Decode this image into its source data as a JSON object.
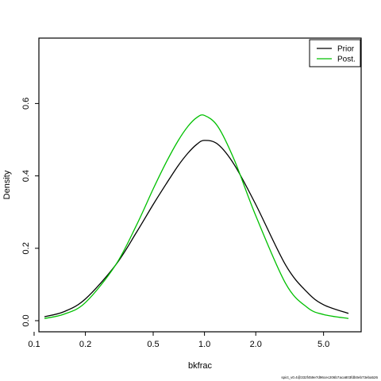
{
  "chart_data": {
    "type": "line",
    "xlabel": "bkfrac",
    "ylabel": "Density",
    "x_scale": "log",
    "xlim": [
      0.115,
      7.0
    ],
    "ylim": [
      0.0,
      0.75
    ],
    "x_ticks": [
      0.1,
      0.2,
      0.5,
      1.0,
      2.0,
      5.0
    ],
    "x_tick_labels": [
      "0.1",
      "0.2",
      "0.5",
      "1.0",
      "2.0",
      "5.0"
    ],
    "y_ticks": [
      0.0,
      0.2,
      0.4,
      0.6
    ],
    "y_tick_labels": [
      "0.0",
      "0.2",
      "0.4",
      "0.6"
    ],
    "grid": false,
    "legend_position": "top-right",
    "series": [
      {
        "name": "Prior",
        "color": "#000000",
        "x": [
          0.115,
          0.15,
          0.2,
          0.3,
          0.4,
          0.5,
          0.6,
          0.7,
          0.8,
          0.9,
          1.0,
          1.2,
          1.5,
          2.0,
          3.0,
          4.0,
          5.0,
          7.0
        ],
        "values": [
          0.011,
          0.025,
          0.06,
          0.153,
          0.245,
          0.321,
          0.38,
          0.428,
          0.463,
          0.487,
          0.498,
          0.487,
          0.43,
          0.321,
          0.153,
          0.079,
          0.044,
          0.02
        ]
      },
      {
        "name": "Post.",
        "color": "#00c000",
        "x": [
          0.115,
          0.15,
          0.2,
          0.3,
          0.4,
          0.5,
          0.6,
          0.7,
          0.8,
          0.9,
          1.0,
          1.2,
          1.5,
          2.0,
          3.0,
          4.0,
          5.0,
          7.0
        ],
        "values": [
          0.006,
          0.018,
          0.05,
          0.153,
          0.265,
          0.364,
          0.44,
          0.497,
          0.537,
          0.561,
          0.567,
          0.536,
          0.443,
          0.29,
          0.102,
          0.037,
          0.017,
          0.006
        ]
      }
    ]
  },
  "footnote": "spict_v0.4@332f459e7d96cec206b7aca803fdb0eb73eba526"
}
